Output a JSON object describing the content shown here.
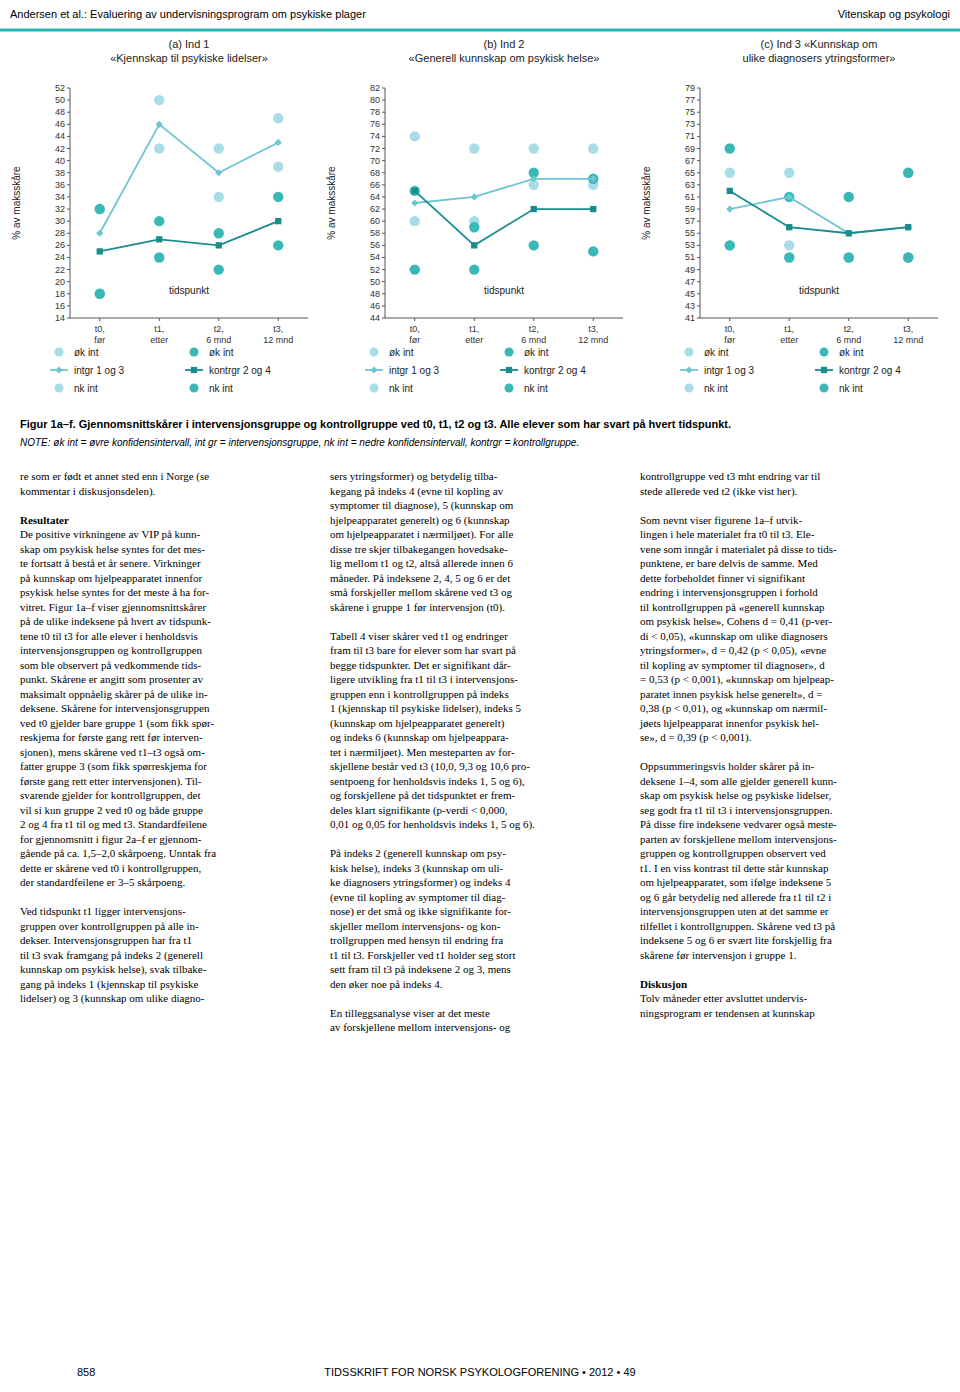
{
  "header_left": "Andersen et al.: Evaluering av undervisningsprogram om psykiske plager",
  "header_right": "Vitenskap og psykologi",
  "chart_data": [
    {
      "type": "line",
      "title": "(a) Ind 1\n«Kjennskap til psykiske lidelser»",
      "x_label": "tidspunkt",
      "y_label": "% av maksskåre",
      "categories": [
        "t0,\nfør",
        "t1,\netter",
        "t2,\n6 mnd",
        "t3,\n12 mnd"
      ],
      "ylim": [
        14,
        52
      ],
      "yticks": [
        14,
        16,
        18,
        20,
        22,
        24,
        26,
        28,
        30,
        32,
        34,
        36,
        38,
        40,
        42,
        44,
        46,
        48,
        50,
        52
      ],
      "grid": false,
      "legend": "bottom",
      "series": [
        {
          "name": "øk int",
          "type": "scatter",
          "marker": "circle",
          "color": "#a8dce8",
          "values": [
            32,
            50,
            42,
            47
          ]
        },
        {
          "name": "intgr 1 og 3",
          "type": "line",
          "marker": "diamond",
          "color": "#6ec6d4",
          "values": [
            28,
            46,
            38,
            43
          ]
        },
        {
          "name": "nk int",
          "type": "scatter",
          "marker": "circle",
          "color": "#a8dce8",
          "values": [
            18,
            42,
            34,
            39
          ]
        },
        {
          "name": "øk int",
          "type": "scatter",
          "marker": "circle",
          "color": "#3ab8b8",
          "values": [
            32,
            30,
            28,
            34
          ]
        },
        {
          "name": "kontrgr 2 og 4",
          "type": "line",
          "marker": "square",
          "color": "#1a8c8c",
          "values": [
            25,
            27,
            26,
            30
          ]
        },
        {
          "name": "nk int",
          "type": "scatter",
          "marker": "circle",
          "color": "#3ab8b8",
          "values": [
            18,
            24,
            22,
            26
          ]
        }
      ]
    },
    {
      "type": "line",
      "title": "(b) Ind 2\n«Generell kunnskap om psykisk helse»",
      "x_label": "tidspunkt",
      "y_label": "% av maksskåre",
      "categories": [
        "t0,\nfør",
        "t1,\netter",
        "t2,\n6 mnd",
        "t3,\n12 mnd"
      ],
      "ylim": [
        44,
        82
      ],
      "yticks": [
        44,
        46,
        48,
        50,
        52,
        54,
        56,
        58,
        60,
        62,
        64,
        66,
        68,
        70,
        72,
        74,
        76,
        78,
        80,
        82
      ],
      "grid": false,
      "legend": "bottom",
      "series": [
        {
          "name": "øk int",
          "type": "scatter",
          "marker": "circle",
          "color": "#a8dce8",
          "values": [
            74,
            72,
            72,
            72
          ]
        },
        {
          "name": "intgr 1 og 3",
          "type": "line",
          "marker": "diamond",
          "color": "#6ec6d4",
          "values": [
            63,
            64,
            67,
            67
          ]
        },
        {
          "name": "nk int",
          "type": "scatter",
          "marker": "circle",
          "color": "#a8dce8",
          "values": [
            60,
            60,
            66,
            66
          ]
        },
        {
          "name": "øk int",
          "type": "scatter",
          "marker": "circle",
          "color": "#3ab8b8",
          "values": [
            65,
            59,
            68,
            67
          ]
        },
        {
          "name": "kontrgr 2 og 4",
          "type": "line",
          "marker": "square",
          "color": "#1a8c8c",
          "values": [
            65,
            56,
            62,
            62
          ]
        },
        {
          "name": "nk int",
          "type": "scatter",
          "marker": "circle",
          "color": "#3ab8b8",
          "values": [
            52,
            52,
            56,
            55
          ]
        }
      ]
    },
    {
      "type": "line",
      "title": "(c) Ind 3 «Kunnskap om\nulike diagnosers ytringsformer»",
      "x_label": "tidspunkt",
      "y_label": "% av maksskåre",
      "categories": [
        "t0,\nfør",
        "t1,\netter",
        "t2,\n6 mnd",
        "t3,\n12 mnd"
      ],
      "ylim": [
        41,
        79
      ],
      "yticks": [
        41,
        43,
        45,
        47,
        49,
        51,
        53,
        55,
        57,
        59,
        61,
        63,
        65,
        67,
        69,
        71,
        73,
        75,
        77,
        79
      ],
      "grid": false,
      "legend": "bottom",
      "series": [
        {
          "name": "øk int",
          "type": "scatter",
          "marker": "circle",
          "color": "#a8dce8",
          "values": [
            65,
            65,
            61,
            65
          ]
        },
        {
          "name": "intgr 1 og 3",
          "type": "line",
          "marker": "diamond",
          "color": "#6ec6d4",
          "values": [
            59,
            61,
            55,
            56
          ]
        },
        {
          "name": "nk int",
          "type": "scatter",
          "marker": "circle",
          "color": "#a8dce8",
          "values": [
            53,
            53,
            51,
            51
          ]
        },
        {
          "name": "øk int",
          "type": "scatter",
          "marker": "circle",
          "color": "#3ab8b8",
          "values": [
            69,
            61,
            61,
            65
          ]
        },
        {
          "name": "kontrgr 2 og 4",
          "type": "line",
          "marker": "square",
          "color": "#1a8c8c",
          "values": [
            62,
            56,
            55,
            56
          ]
        },
        {
          "name": "nk int",
          "type": "scatter",
          "marker": "circle",
          "color": "#3ab8b8",
          "values": [
            53,
            51,
            51,
            51
          ]
        }
      ]
    }
  ],
  "caption": "Figur 1a–f. Gjennomsnittskårer i intervensjonsgruppe og kontrollgruppe ved t0, t1, t2 og t3. Alle elever som har svart på hvert tidspunkt.",
  "note": "NOTE: øk int = øvre konfidensintervall, int gr = intervensjonsgruppe, nk int = nedre konfidensintervall, kontrgr = kontrollgruppe.",
  "body_columns": [
    [
      {
        "lines": [
          "re som er født et annet sted enn i Norge (se",
          "kommentar i diskusjonsdelen)."
        ]
      },
      {
        "heading": "Resultater"
      },
      {
        "lines": [
          "De positive virkningene av VIP på kunn-",
          "skap om psykisk helse syntes for det mes-",
          "te fortsatt å bestå et år senere. Virkninger",
          "på kunnskap om hjelpeapparatet innenfor",
          "psykisk helse syntes for det meste å ha for-",
          "vitret. Figur 1a–f viser gjennomsnittskårer",
          "på de ulike indeksene på hvert av tidspunk-",
          "tene t0 til t3 for alle elever i henholdsvis",
          "intervensjonsgruppen og kontrollgruppen",
          "som ble observert på vedkommende tids-",
          "punkt. Skårene er angitt som prosenter av",
          "maksimalt oppnåelig skårer på de ulike in-",
          "deksene. Skårene for intervensjonsgruppen",
          "ved t0 gjelder bare gruppe 1 (som fikk spør-",
          "reskjema for første gang rett før interven-",
          "sjonen), mens skårene ved t1–t3 også om-",
          "fatter gruppe 3 (som fikk spørreskjema for",
          "første gang rett etter intervensjonen). Til-",
          "svarende gjelder for kontrollgruppen, det",
          "vil si kun gruppe 2 ved t0 og både gruppe",
          "2 og 4 fra t1 til og med t3. Standardfeilene",
          "for gjennomsnitt i figur 2a–f er gjennom-",
          "gående på ca. 1,5–2,0 skårpoeng. Unntak fra",
          "dette er skårene ved t0 i kontrollgruppen,",
          "der standardfeilene er 3–5 skårpoeng."
        ]
      },
      {
        "lines": [
          "Ved tidspunkt t1 ligger intervensjons-",
          "gruppen over kontrollgruppen på alle in-",
          "dekser. Intervensjonsgruppen har fra t1",
          "til t3 svak framgang på indeks 2 (generell",
          "kunnskap om psykisk helse), svak tilbake-",
          "gang på indeks 1 (kjennskap til psykiske",
          "lidelser) og 3 (kunnskap om ulike diagno-"
        ]
      }
    ],
    [
      {
        "lines": [
          "sers ytringsformer) og betydelig tilba-",
          "kegang på indeks 4 (evne til kopling av",
          "symptomer til diagnose), 5 (kunnskap om",
          "hjelpeapparatet generelt) og 6 (kunnskap",
          "om hjelpeapparatet i nærmiljøet). For alle",
          "disse tre skjer tilbakegangen hovedsake-",
          "lig mellom t1 og t2, altså allerede innen 6",
          "måneder. På indeksene 2, 4, 5 og 6 er det",
          "små forskjeller mellom skårene ved t3 og",
          "skårene i gruppe 1 før intervensjon (t0)."
        ]
      },
      {
        "lines": [
          "Tabell 4 viser skårer ved t1 og endringer",
          "fram til t3 bare for elever som har svart på",
          "begge tidspunkter. Det er signifikant dår-",
          "ligere utvikling fra t1 til t3 i intervensjons-",
          "gruppen enn i kontrollgruppen på indeks",
          "1 (kjennskap til psykiske lidelser), indeks 5",
          "(kunnskap om hjelpeapparatet generelt)",
          "og indeks 6 (kunnskap om hjelpeappara-",
          "tet i nærmiljøet). Men mesteparten av for-",
          "skjellene består ved t3 (10,0, 9,3 og 10,6 pro-",
          "sentpoeng for henholdsvis indeks 1, 5 og 6),",
          "og forskjellene på det tidspunktet er frem-",
          "deles klart signifikante (p-verdi < 0,000,",
          "0,01 og 0,05 for henholdsvis indeks 1, 5 og 6)."
        ]
      },
      {
        "lines": [
          "På indeks 2 (generell kunnskap om psy-",
          "kisk helse), indeks 3 (kunnskap om uli-",
          "ke diagnosers ytringsformer) og indeks 4",
          "(evne til kopling av symptomer til diag-",
          "nose) er det små og ikke signifikante for-",
          "skjeller mellom intervensjons- og kon-",
          "trollgruppen med hensyn til endring fra",
          "t1 til t3. Forskjeller ved t1 holder seg stort",
          "sett fram til t3 på indeksene 2 og 3, mens",
          "den øker noe på indeks 4."
        ]
      },
      {
        "lines": [
          "En tilleggsanalyse viser at det meste",
          "av forskjellene mellom intervensjons- og"
        ]
      }
    ],
    [
      {
        "lines": [
          "kontrollgruppe ved t3 mht endring var til",
          "stede allerede ved t2 (ikke vist her)."
        ]
      },
      {
        "lines": [
          "Som nevnt viser figurene 1a–f utvik-",
          "lingen i hele materialet fra t0 til t3. Ele-",
          "vene som inngår i materialet på disse to tids-",
          "punktene, er bare delvis de samme. Med",
          "dette forbeholdet finner vi signifikant",
          "endring i intervensjonsgruppen i forhold",
          "til kontrollgruppen på «generell kunnskap",
          "om psykisk helse», Cohens d = 0,41 (p-ver-",
          "di < 0,05), «kunnskap om ulike diagnosers",
          "ytringsformer», d = 0,42 (p < 0,05), «evne",
          "til kopling av symptomer til diagnoser», d",
          "= 0,53 (p < 0,001), «kunnskap om hjelpeap-",
          "paratet innen psykisk helse generelt», d =",
          "0,38 (p < 0,01), og «kunnskap om nærmil-",
          "jøets hjelpeapparat innenfor psykisk hel-",
          "se», d = 0,39 (p < 0,001)."
        ]
      },
      {
        "lines": [
          "Oppsummeringsvis holder skårer på in-",
          "deksene 1–4, som alle gjelder generell kunn-",
          "skap om psykisk helse og psykiske lidelser,",
          "seg godt fra t1 til t3 i intervensjonsgruppen.",
          "På disse fire indeksene vedvarer også meste-",
          "parten av forskjellene mellom intervensjons-",
          "gruppen og kontrollgruppen observert ved",
          "t1. I en viss kontrast til dette står kunnskap",
          "om hjelpeapparatet, som ifølge indeksene 5",
          "og 6 går betydelig ned allerede fra t1 til t2 i",
          "intervensjonsgruppen uten at det samme er",
          "tilfellet i kontrollgruppen. Skårene ved t3 på",
          "indeksene 5 og 6 er svært lite forskjellig fra",
          "skårene før intervensjon i gruppe 1."
        ]
      },
      {
        "heading": "Diskusjon"
      },
      {
        "lines": [
          "Tolv måneder etter avsluttet undervis-",
          "ningsprogram er tendensen at kunnskap"
        ]
      }
    ]
  ],
  "page_number": "858",
  "page_footer": "TIDSSKRIFT FOR NORSK PSYKOLOGFORENING • 2012 • 49"
}
